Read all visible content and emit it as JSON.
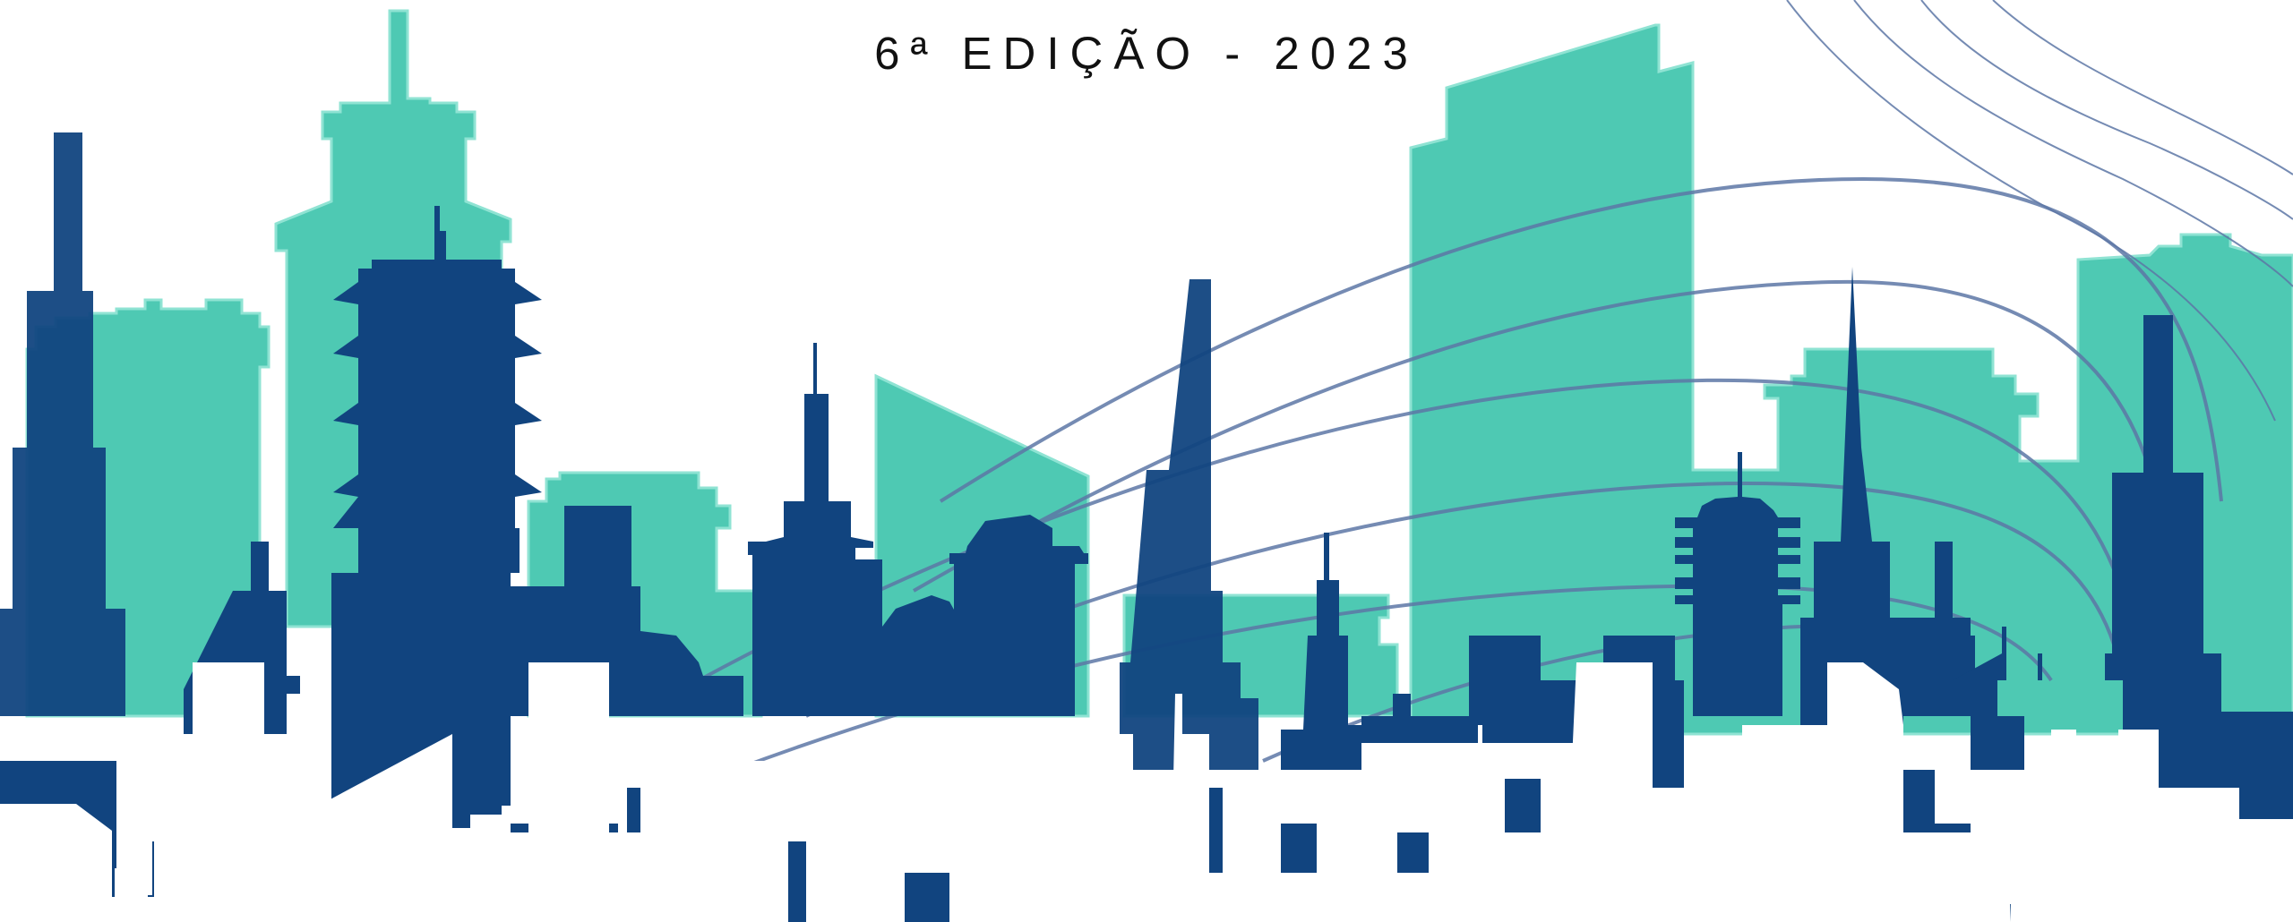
{
  "banner": {
    "edition_title": "6ª EDIÇÃO - 2023"
  },
  "colors": {
    "teal_buildings": "#4ec9b3",
    "navy_buildings": "#11447f",
    "curve_lines": "#5d77a6",
    "foreground_buildings": "#ffffff",
    "title_text": "#111111"
  },
  "illustration": {
    "description_icons": [
      "city-skyline-illustration",
      "curved-lines-decoration"
    ]
  }
}
